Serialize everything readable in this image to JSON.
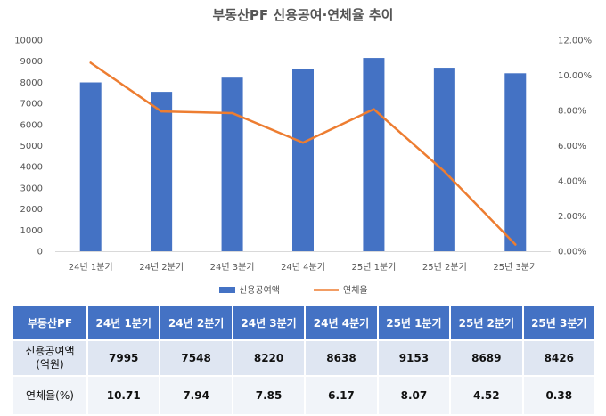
{
  "chart_data": {
    "type": "bar+line",
    "title": "부동산PF 신용공여·연체율 추이",
    "categories": [
      "24년 1분기",
      "24년 2분기",
      "24년 3분기",
      "24년 4분기",
      "25년 1분기",
      "25년 2분기",
      "25년 3분기"
    ],
    "series": [
      {
        "name": "신용공여액",
        "type": "bar",
        "axis": "left",
        "color": "#4472c4",
        "values": [
          7995,
          7548,
          8220,
          8638,
          9153,
          8689,
          8426
        ]
      },
      {
        "name": "연체율",
        "type": "line",
        "axis": "right",
        "color": "#ed7d31",
        "values": [
          10.71,
          7.94,
          7.85,
          6.17,
          8.07,
          4.52,
          0.38
        ]
      }
    ],
    "y_left": {
      "min": 0,
      "max": 10000,
      "step": 1000,
      "tick_labels": [
        "0",
        "1000",
        "2000",
        "3000",
        "4000",
        "5000",
        "6000",
        "7000",
        "8000",
        "9000",
        "10000"
      ]
    },
    "y_right": {
      "min": 0,
      "max": 12,
      "step": 2,
      "tick_labels": [
        "0.00%",
        "2.00%",
        "4.00%",
        "6.00%",
        "8.00%",
        "10.00%",
        "12.00%"
      ]
    },
    "grid": false,
    "legend_position": "bottom"
  },
  "table": {
    "corner": "부동산PF",
    "headers": [
      "24년 1분기",
      "24년 2분기",
      "24년 3분기",
      "24년 4분기",
      "25년 1분기",
      "25년 2분기",
      "25년 3분기"
    ],
    "rows": [
      {
        "label_line1": "신용공여액",
        "label_line2": "(억원)",
        "values": [
          "7995",
          "7548",
          "8220",
          "8638",
          "9153",
          "8689",
          "8426"
        ]
      },
      {
        "label_line1": "연체율(%)",
        "label_line2": "",
        "values": [
          "10.71",
          "7.94",
          "7.85",
          "6.17",
          "8.07",
          "4.52",
          "0.38"
        ]
      }
    ]
  }
}
